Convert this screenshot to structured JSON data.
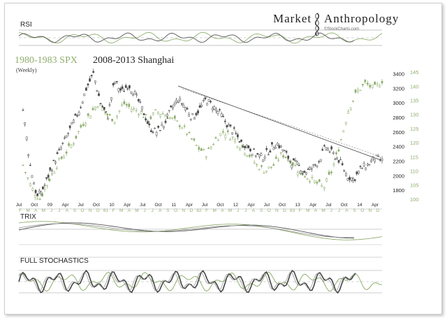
{
  "brand": {
    "name_left": "Market",
    "name_right": "Anthropology",
    "source": "©StockCharts.com"
  },
  "chart_data": {
    "type": "line",
    "title_series_a": "1980-1983 SPX",
    "title_series_b": "2008-2013 Shanghai",
    "subtitle": "(Weekly)",
    "colors": {
      "spx": "#8fae6e",
      "shanghai": "#4a4a4a",
      "trendline": "#333333",
      "indicator_grid": "#999999"
    },
    "series": [
      {
        "name": "2008-2013 Shanghai",
        "axis": "left",
        "ylim": [
          1600,
          3500
        ],
        "y_ticks": [
          "3400",
          "3200",
          "3000",
          "2800",
          "2600",
          "2400",
          "2200",
          "2000",
          "1800"
        ],
        "x_ticks": [
          "Jul",
          "Oct",
          "09",
          "Apr",
          "Jul",
          "Oct",
          "10",
          "Apr",
          "Jul",
          "Oct",
          "11",
          "Apr",
          "Jul",
          "Oct",
          "12",
          "Apr",
          "Jul",
          "Oct",
          "13",
          "Apr",
          "Jul",
          "Oct",
          "14",
          "Apr"
        ],
        "points": [
          [
            0,
            2900
          ],
          [
            3,
            2150
          ],
          [
            6,
            1700
          ],
          [
            9,
            1850
          ],
          [
            12,
            2100
          ],
          [
            15,
            2300
          ],
          [
            18,
            2500
          ],
          [
            21,
            2700
          ],
          [
            24,
            2900
          ],
          [
            27,
            3200
          ],
          [
            30,
            3400
          ],
          [
            33,
            3000
          ],
          [
            36,
            2800
          ],
          [
            39,
            3300
          ],
          [
            42,
            3150
          ],
          [
            45,
            3250
          ],
          [
            48,
            3100
          ],
          [
            51,
            2900
          ],
          [
            54,
            2650
          ],
          [
            57,
            2600
          ],
          [
            60,
            2700
          ],
          [
            63,
            2900
          ],
          [
            66,
            3050
          ],
          [
            69,
            2950
          ],
          [
            72,
            2800
          ],
          [
            75,
            2900
          ],
          [
            78,
            3050
          ],
          [
            81,
            2950
          ],
          [
            84,
            2850
          ],
          [
            87,
            2700
          ],
          [
            90,
            2600
          ],
          [
            93,
            2450
          ],
          [
            96,
            2400
          ],
          [
            99,
            2300
          ],
          [
            102,
            2250
          ],
          [
            105,
            2350
          ],
          [
            108,
            2450
          ],
          [
            111,
            2350
          ],
          [
            114,
            2200
          ],
          [
            117,
            2150
          ],
          [
            120,
            2050
          ],
          [
            123,
            2100
          ],
          [
            126,
            2200
          ],
          [
            129,
            2400
          ],
          [
            132,
            2300
          ],
          [
            135,
            2200
          ],
          [
            138,
            2000
          ],
          [
            141,
            1950
          ],
          [
            144,
            2100
          ],
          [
            147,
            2150
          ],
          [
            150,
            2250
          ],
          [
            153,
            2200
          ]
        ]
      },
      {
        "name": "1980-1983 SPX",
        "axis": "right",
        "ylim": [
          98,
          147
        ],
        "y_ticks": [
          "145",
          "140",
          "135",
          "130",
          "125",
          "120",
          "115",
          "110",
          "105",
          "100"
        ],
        "x_ticks": [
          "F",
          "M",
          "A",
          "M",
          "J",
          "J",
          "A",
          "S",
          "O",
          "N",
          "D",
          "81",
          "F",
          "M",
          "A",
          "M",
          "J",
          "J",
          "A",
          "S",
          "O",
          "N",
          "D",
          "82",
          "F",
          "M",
          "A",
          "M",
          "J",
          "J",
          "A",
          "S",
          "O",
          "N",
          "D",
          "83",
          "F",
          "M",
          "A",
          "M",
          "J",
          "J",
          "A",
          "S",
          "O",
          "N",
          "D"
        ],
        "points": [
          [
            0,
            112
          ],
          [
            4,
            104
          ],
          [
            8,
            100
          ],
          [
            12,
            106
          ],
          [
            16,
            112
          ],
          [
            20,
            116
          ],
          [
            24,
            120
          ],
          [
            28,
            126
          ],
          [
            32,
            130
          ],
          [
            36,
            134
          ],
          [
            40,
            130
          ],
          [
            44,
            128
          ],
          [
            48,
            134
          ],
          [
            52,
            132
          ],
          [
            56,
            131
          ],
          [
            60,
            128
          ],
          [
            64,
            131
          ],
          [
            68,
            130
          ],
          [
            72,
            128
          ],
          [
            76,
            126
          ],
          [
            80,
            122
          ],
          [
            84,
            118
          ],
          [
            88,
            116
          ],
          [
            92,
            121
          ],
          [
            96,
            124
          ],
          [
            100,
            122
          ],
          [
            104,
            119
          ],
          [
            108,
            116
          ],
          [
            112,
            112
          ],
          [
            116,
            110
          ],
          [
            120,
            112
          ],
          [
            124,
            116
          ],
          [
            128,
            114
          ],
          [
            132,
            110
          ],
          [
            136,
            108
          ],
          [
            140,
            106
          ],
          [
            144,
            104
          ],
          [
            148,
            110
          ],
          [
            152,
            120
          ],
          [
            156,
            132
          ],
          [
            160,
            138
          ],
          [
            164,
            141
          ],
          [
            168,
            139
          ],
          [
            172,
            142
          ]
        ]
      }
    ],
    "indicators": [
      {
        "name": "RSI"
      },
      {
        "name": "TRIX"
      },
      {
        "name": "FULL STOCHASTICS"
      }
    ]
  }
}
